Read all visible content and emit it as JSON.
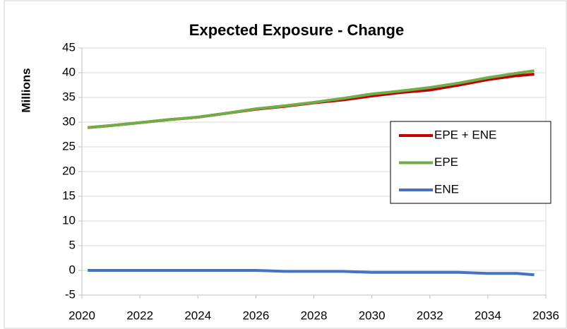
{
  "chart_data": {
    "type": "line",
    "title": "Expected Exposure - Change",
    "y_label": "Millions",
    "x": [
      2020.2,
      2021,
      2022,
      2023,
      2024,
      2025,
      2026,
      2027,
      2028,
      2029,
      2030,
      2031,
      2032,
      2033,
      2034,
      2035,
      2035.6
    ],
    "series": [
      {
        "name": "EPE + ENE",
        "color": "#c00000",
        "values": [
          28.9,
          29.3,
          29.9,
          30.5,
          31.0,
          31.8,
          32.6,
          33.2,
          33.9,
          34.5,
          35.3,
          36.0,
          36.5,
          37.5,
          38.6,
          39.4,
          39.7
        ]
      },
      {
        "name": "EPE",
        "color": "#70ad47",
        "values": [
          28.9,
          29.3,
          29.9,
          30.5,
          31.0,
          31.8,
          32.7,
          33.3,
          34.0,
          34.8,
          35.7,
          36.3,
          37.0,
          37.9,
          39.0,
          39.9,
          40.4
        ]
      },
      {
        "name": "ENE",
        "color": "#4472c4",
        "values": [
          0,
          0,
          0,
          0,
          0,
          0,
          0,
          -0.2,
          -0.2,
          -0.2,
          -0.4,
          -0.4,
          -0.4,
          -0.4,
          -0.6,
          -0.6,
          -0.9
        ]
      }
    ],
    "xlim": [
      2020,
      2036
    ],
    "xticks": [
      2020,
      2022,
      2024,
      2026,
      2028,
      2030,
      2032,
      2034,
      2036
    ],
    "ylim": [
      -5,
      45
    ],
    "yticks": [
      -5,
      0,
      5,
      10,
      15,
      20,
      25,
      30,
      35,
      40,
      45
    ],
    "grid": true
  }
}
